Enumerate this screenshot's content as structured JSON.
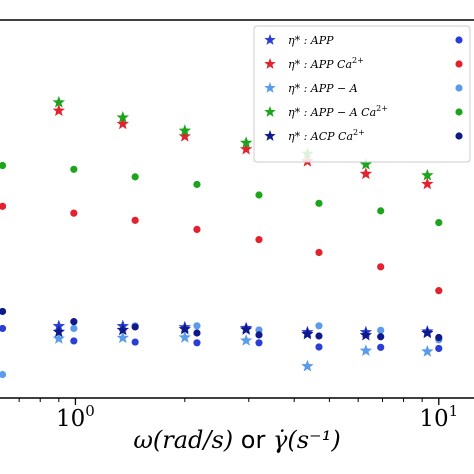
{
  "chart_data": {
    "type": "scatter",
    "title": "",
    "xlabel_math_left": "ω(rad/s)",
    "xlabel_word": "or",
    "xlabel_math_right": "γ̇(s⁻¹)",
    "xscale": "log",
    "xlim": [
      0.62,
      12.5
    ],
    "ylim": [
      0,
      100
    ],
    "grid": false,
    "legend_placement": "top-right",
    "xticks": [
      {
        "value": 1,
        "label_base": "10",
        "label_exp": "0"
      },
      {
        "value": 10,
        "label_base": "10",
        "label_exp": "1"
      }
    ],
    "legend_entries": [
      {
        "label_prefix": "η* : ",
        "label_main": "APP",
        "label_sup": ""
      },
      {
        "label_prefix": "η* : ",
        "label_main": "APP Ca",
        "label_sup": "2+"
      },
      {
        "label_prefix": "η* : ",
        "label_main": "APP − A",
        "label_sup": ""
      },
      {
        "label_prefix": "η* : ",
        "label_main": "APP − A Ca",
        "label_sup": "2+"
      },
      {
        "label_prefix": "η* : ",
        "label_main": "ACP Ca",
        "label_sup": "2+"
      }
    ],
    "series": [
      {
        "marker": "star",
        "color": "#2b3fd6",
        "points": [
          [
            0.9,
            19.0
          ],
          [
            1.35,
            19.0
          ],
          [
            2.0,
            18.7
          ],
          [
            2.95,
            18.5
          ],
          [
            4.35,
            17.4
          ],
          [
            6.3,
            17.4
          ],
          [
            9.3,
            17.6
          ]
        ]
      },
      {
        "marker": "star",
        "color": "#e2222e",
        "points": [
          [
            0.9,
            76.0
          ],
          [
            1.35,
            72.5
          ],
          [
            2.0,
            69.2
          ],
          [
            2.95,
            65.8
          ],
          [
            4.35,
            62.6
          ],
          [
            6.3,
            59.3
          ],
          [
            9.3,
            56.6
          ]
        ]
      },
      {
        "marker": "star",
        "color": "#5a9bea",
        "points": [
          [
            0.9,
            15.7
          ],
          [
            1.35,
            15.9
          ],
          [
            2.0,
            16.0
          ],
          [
            2.95,
            15.2
          ],
          [
            4.35,
            8.4
          ],
          [
            6.3,
            12.5
          ],
          [
            9.3,
            12.3
          ]
        ]
      },
      {
        "marker": "star",
        "color": "#1ca51c",
        "points": [
          [
            0.9,
            78.2
          ],
          [
            1.35,
            74.2
          ],
          [
            2.0,
            70.7
          ],
          [
            2.95,
            67.5
          ],
          [
            4.35,
            64.6
          ],
          [
            6.3,
            61.8
          ],
          [
            9.3,
            58.9
          ]
        ]
      },
      {
        "marker": "star",
        "color": "#0f1a8a",
        "points": [
          [
            0.9,
            17.5
          ],
          [
            1.35,
            18.0
          ],
          [
            2.0,
            18.2
          ],
          [
            2.95,
            18.1
          ],
          [
            4.35,
            16.9
          ],
          [
            6.3,
            16.6
          ],
          [
            9.3,
            17.2
          ]
        ]
      },
      {
        "marker": "circle",
        "color": "#2b3fd6",
        "points": [
          [
            0.63,
            18.4
          ],
          [
            0.99,
            15.1
          ],
          [
            1.46,
            14.8
          ],
          [
            2.16,
            14.6
          ],
          [
            3.2,
            14.6
          ],
          [
            4.68,
            13.5
          ],
          [
            6.92,
            13.4
          ],
          [
            10.0,
            13.1
          ]
        ]
      },
      {
        "marker": "circle",
        "color": "#e2222e",
        "points": [
          [
            0.63,
            50.7
          ],
          [
            0.99,
            48.9
          ],
          [
            1.46,
            47.0
          ],
          [
            2.16,
            44.6
          ],
          [
            3.2,
            41.9
          ],
          [
            4.68,
            38.5
          ],
          [
            6.92,
            34.7
          ],
          [
            10.0,
            28.4
          ]
        ]
      },
      {
        "marker": "circle",
        "color": "#5a9bea",
        "points": [
          [
            0.63,
            6.2
          ],
          [
            0.99,
            18.4
          ],
          [
            1.46,
            19.1
          ],
          [
            2.16,
            19.1
          ],
          [
            3.2,
            18.0
          ],
          [
            4.68,
            19.1
          ],
          [
            6.92,
            17.9
          ],
          [
            10.0,
            15.4
          ]
        ]
      },
      {
        "marker": "circle",
        "color": "#1ca51c",
        "points": [
          [
            0.63,
            61.5
          ],
          [
            0.99,
            60.5
          ],
          [
            1.46,
            58.5
          ],
          [
            2.16,
            56.5
          ],
          [
            3.2,
            53.7
          ],
          [
            4.68,
            51.5
          ],
          [
            6.92,
            49.5
          ],
          [
            10.0,
            46.4
          ]
        ]
      },
      {
        "marker": "circle",
        "color": "#0f1a8a",
        "points": [
          [
            0.63,
            22.9
          ],
          [
            0.99,
            20.2
          ],
          [
            1.46,
            18.8
          ],
          [
            2.16,
            17.2
          ],
          [
            3.2,
            16.7
          ],
          [
            4.68,
            16.4
          ],
          [
            6.92,
            16.2
          ],
          [
            10.0,
            16.0
          ]
        ]
      }
    ]
  }
}
